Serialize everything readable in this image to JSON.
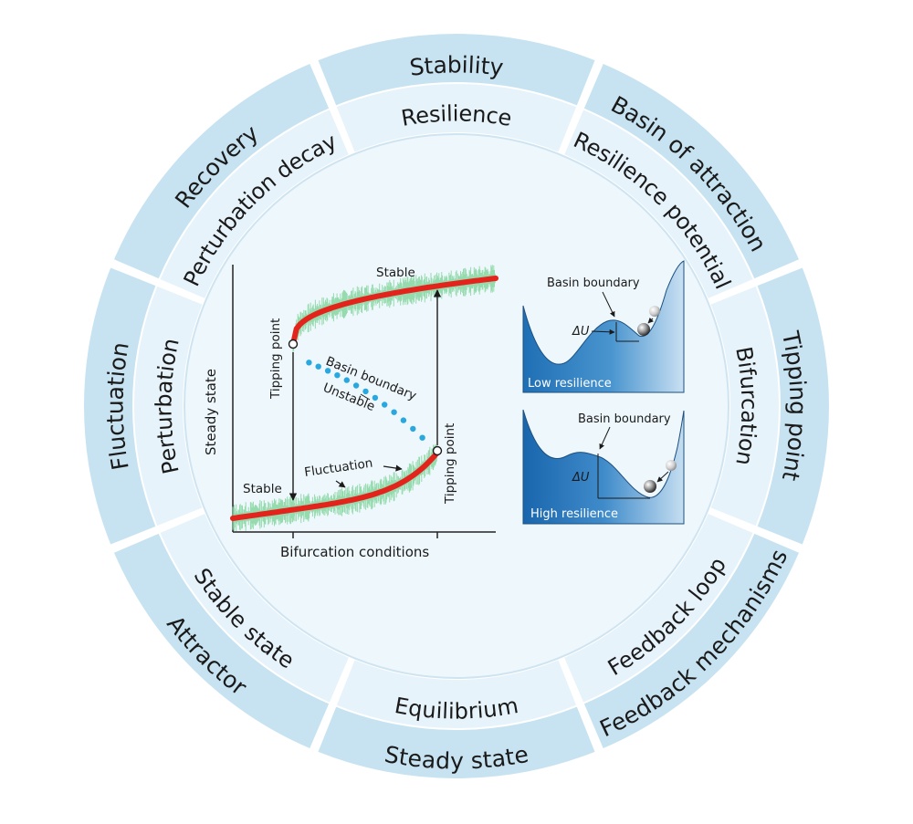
{
  "diagram": {
    "segments": [
      {
        "outer": "Stability",
        "inner": "Resilience"
      },
      {
        "outer": "Basin of attraction",
        "inner": "Resilience potential"
      },
      {
        "outer": "Tipping point",
        "inner": "Bifurcation"
      },
      {
        "outer": "Feedback mechanisms",
        "inner": "Feedback loop"
      },
      {
        "outer": "Steady state",
        "inner": "Equilibrium"
      },
      {
        "outer": "Attractor",
        "inner": "Stable state"
      },
      {
        "outer": "Fluctuation",
        "inner": "Perturbation"
      },
      {
        "outer": "Recovery",
        "inner": "Perturbation decay"
      }
    ],
    "bifurcation_plot": {
      "xlabel": "Bifurcation conditions",
      "ylabel": "Steady state",
      "label_stable_top": "Stable",
      "label_stable_bottom": "Stable",
      "label_unstable": "Unstable",
      "label_basin_boundary": "Basin boundary",
      "label_tipping_left": "Tipping point",
      "label_tipping_right": "Tipping point",
      "label_fluctuation": "Fluctuation"
    },
    "panel_low": {
      "title": "Basin boundary",
      "delta_u": "ΔU",
      "label": "Low resilience"
    },
    "panel_high": {
      "title": "Basin boundary",
      "delta_u": "ΔU",
      "label": "High resilience"
    },
    "colors": {
      "outer_ring": "#c7e3f1",
      "inner_ring": "#e7f3fa",
      "center": "#eef7fc",
      "stable_curve": "#e3241c",
      "unstable_dots": "#29a8e0",
      "fluctuation": "#7fd39a",
      "panel_dark": "#1f6fb5",
      "panel_light": "#bcd9ee"
    }
  }
}
